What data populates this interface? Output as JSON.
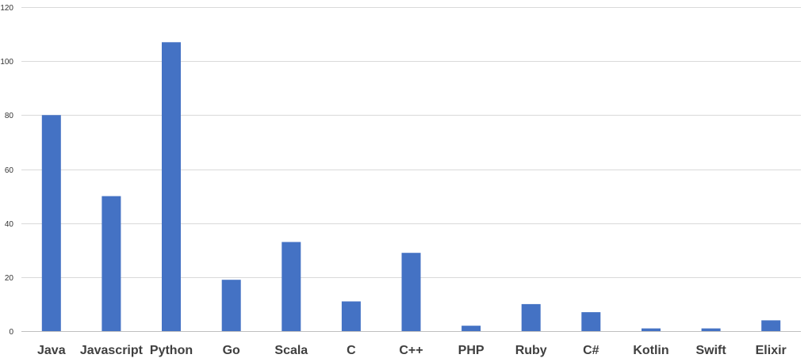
{
  "chart_data": {
    "type": "bar",
    "title": "",
    "xlabel": "",
    "ylabel": "",
    "categories": [
      "Java",
      "Javascript",
      "Python",
      "Go",
      "Scala",
      "C",
      "C++",
      "PHP",
      "Ruby",
      "C#",
      "Kotlin",
      "Swift",
      "Elixir"
    ],
    "values": [
      80,
      50,
      107,
      19,
      33,
      11,
      29,
      2,
      10,
      7,
      1,
      1,
      4
    ],
    "ylim": [
      0,
      120
    ],
    "yticks": [
      "0",
      "20",
      "40",
      "60",
      "80",
      "100",
      "120"
    ],
    "grid": true,
    "legend": "none",
    "bar_color": "#4472c4"
  }
}
